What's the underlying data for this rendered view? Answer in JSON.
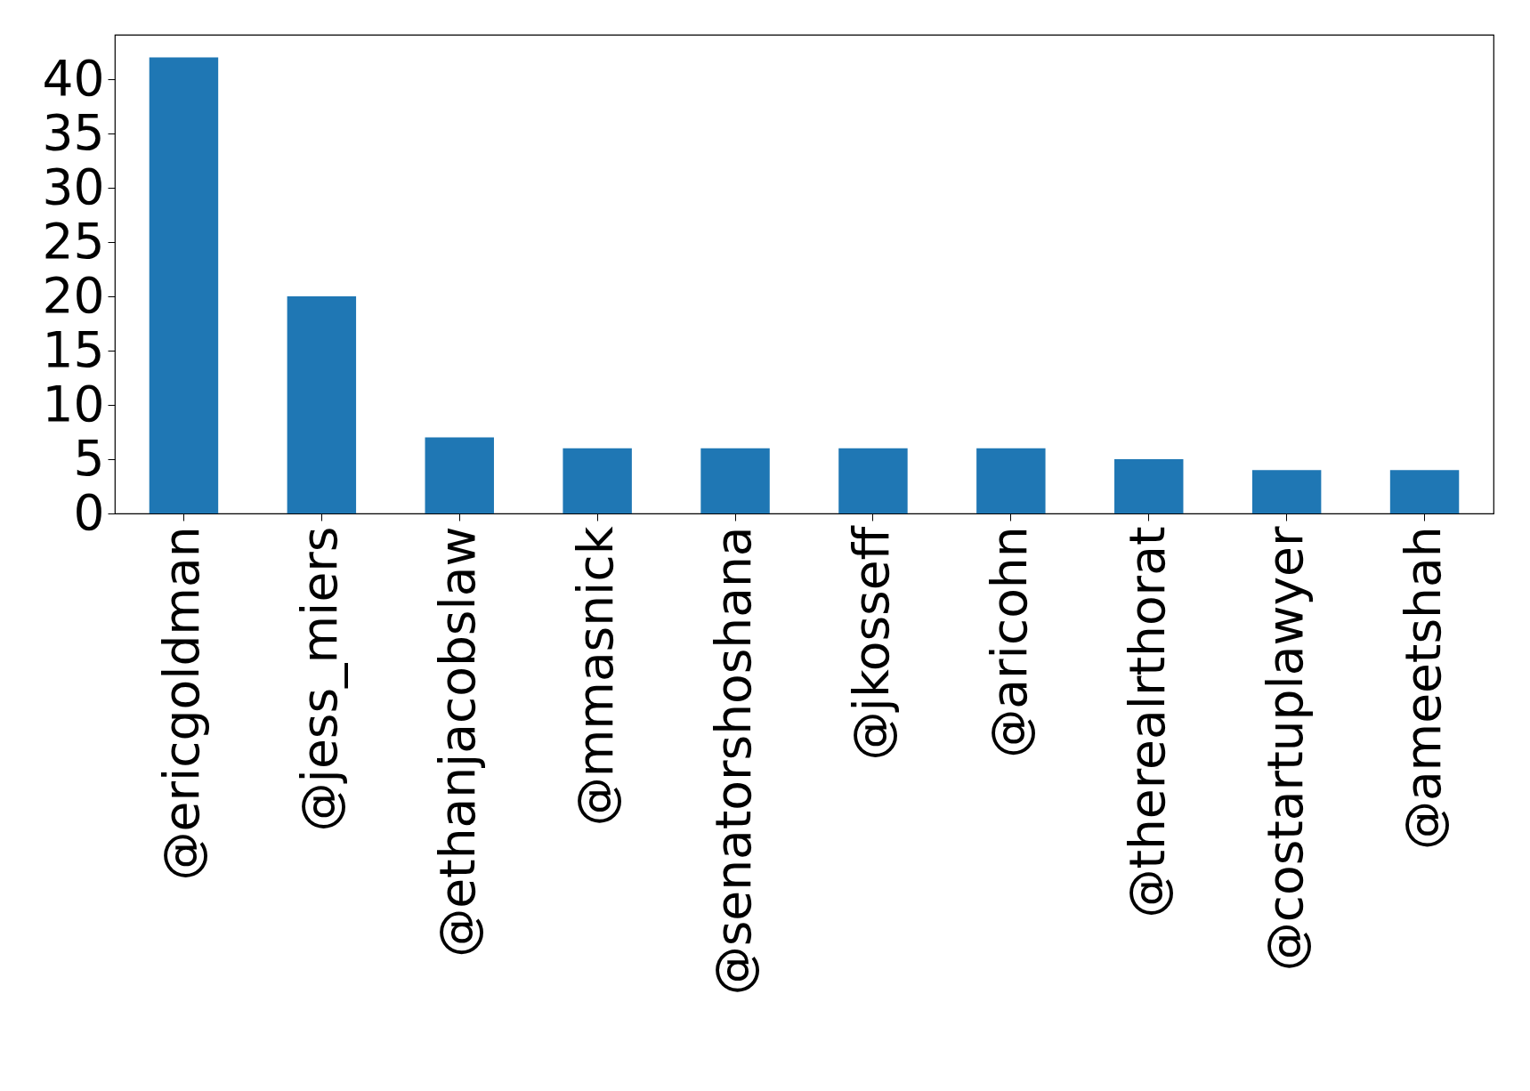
{
  "chart_data": {
    "type": "bar",
    "categories": [
      "@ericgoldman",
      "@jess_miers",
      "@ethanjacobslaw",
      "@mmasnick",
      "@senatorshoshana",
      "@jkosseff",
      "@aricohn",
      "@therealrthorat",
      "@costartuplawyer",
      "@ameetshah"
    ],
    "values": [
      42,
      20,
      7,
      6,
      6,
      6,
      6,
      5,
      4,
      4
    ],
    "color": "#1f77b4",
    "ylim": [
      0,
      44.1
    ],
    "yticks": [
      0,
      5,
      10,
      15,
      20,
      25,
      30,
      35,
      40
    ],
    "grid": false
  }
}
